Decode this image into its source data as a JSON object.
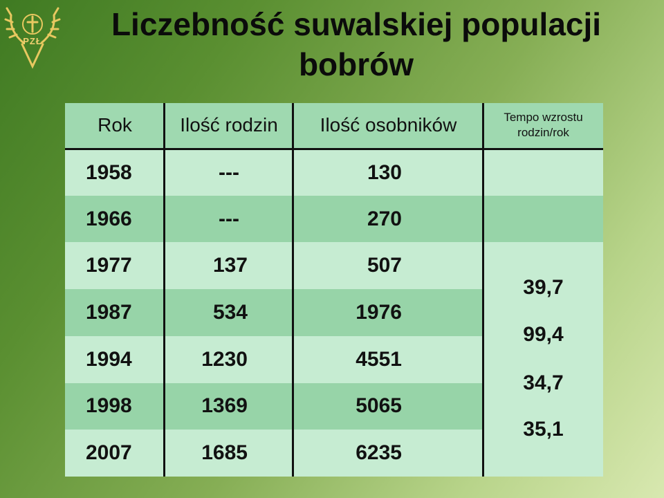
{
  "title": "Liczebność suwalskiej populacji bobrów",
  "logo": {
    "text": "PZŁ",
    "icon": "deer-antlers-cross-icon"
  },
  "table": {
    "headers": [
      "Rok",
      "Ilość rodzin",
      "Ilość osobników",
      "Tempo wzrostu rodzin/rok"
    ],
    "rows": [
      {
        "year": "1958",
        "families": "---",
        "individuals": "130"
      },
      {
        "year": "1966",
        "families": "---",
        "individuals": "270"
      },
      {
        "year": "1977",
        "families": "137",
        "individuals": "507"
      },
      {
        "year": "1987",
        "families": "534",
        "individuals": "1976"
      },
      {
        "year": "1994",
        "families": "1230",
        "individuals": "4551"
      },
      {
        "year": "1998",
        "families": "1369",
        "individuals": "5065"
      },
      {
        "year": "2007",
        "families": "1685",
        "individuals": "6235"
      }
    ],
    "growth_rates": [
      "39,7",
      "99,4",
      "34,7",
      "35,1"
    ]
  },
  "colors": {
    "header_bg": "#9fd9b0",
    "row_light": "#c6ecd2",
    "row_dark": "#97d4a8"
  }
}
